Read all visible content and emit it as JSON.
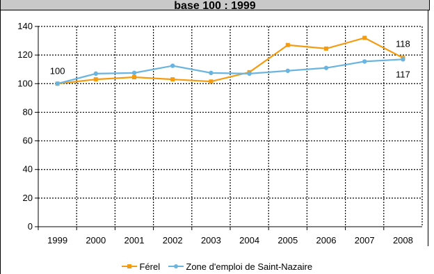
{
  "header": {
    "title": "base 100 : 1999"
  },
  "colors": {
    "ferel": "#f39c12",
    "zone": "#6ab4e0"
  },
  "chart_data": {
    "type": "line",
    "title": "base 100 : 1999",
    "categories": [
      "1999",
      "2000",
      "2001",
      "2002",
      "2003",
      "2004",
      "2005",
      "2006",
      "2007",
      "2008"
    ],
    "series": [
      {
        "name": "Férel",
        "values": [
          100,
          103,
          104.5,
          103,
          101.5,
          108,
          127,
          124.5,
          132,
          118
        ]
      },
      {
        "name": "Zone d'emploi de Saint-Nazaire",
        "values": [
          100,
          107,
          107.5,
          112.5,
          107.5,
          107,
          109,
          111,
          115.5,
          117
        ]
      }
    ],
    "ylim": [
      0,
      140
    ],
    "yticks": [
      "0",
      "20",
      "40",
      "60",
      "80",
      "100",
      "120",
      "140"
    ],
    "grid": true,
    "legend": "bottom",
    "data_labels": [
      {
        "text": "100",
        "series": 0,
        "index": 0
      },
      {
        "text": "118",
        "series": 0,
        "index": 9
      },
      {
        "text": "117",
        "series": 1,
        "index": 9
      }
    ]
  }
}
